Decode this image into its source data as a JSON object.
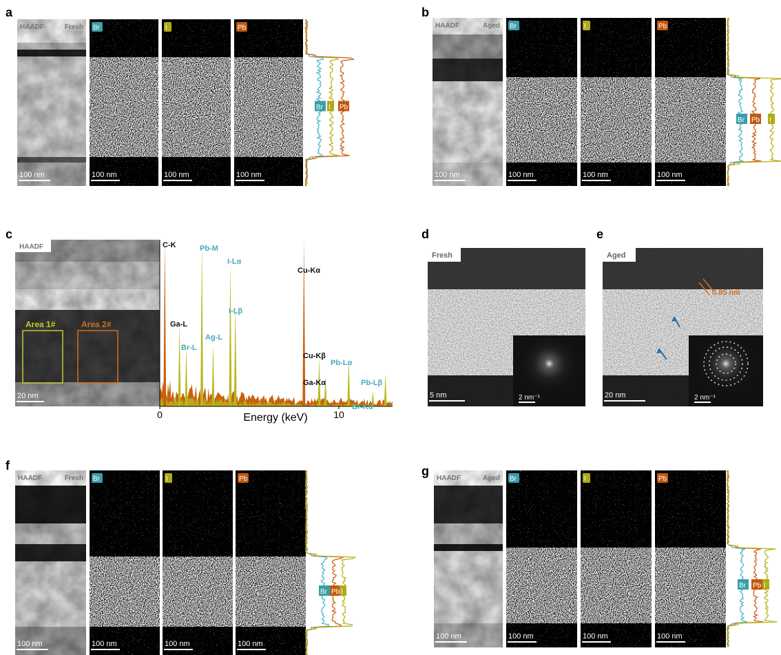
{
  "panels": {
    "a": {
      "label": "a",
      "haadf": "HAADF",
      "state": "Fresh",
      "maps": [
        "Br",
        "I",
        "Pb"
      ],
      "scale_bars": [
        "100 nm",
        "100 nm",
        "100 nm",
        "100 nm"
      ],
      "profile_labels": [
        "Br",
        "I",
        "Pb"
      ]
    },
    "b": {
      "label": "b",
      "haadf": "HAADF",
      "state": "Aged",
      "maps": [
        "Br",
        "I",
        "Pb"
      ],
      "scale_bars": [
        "100 nm",
        "100 nm",
        "100 nm",
        "100 nm"
      ],
      "profile_labels": [
        "Br",
        "Pb",
        "I"
      ]
    },
    "c": {
      "label": "c",
      "haadf": "HAADF",
      "areas": [
        "Area 1#",
        "Area 2#"
      ],
      "scale_bar": "20 nm",
      "x_axis_label": "Energy (keV)",
      "x_ticks": [
        "0",
        "10"
      ],
      "peaks": [
        "C-K",
        "Pb-M",
        "I-Lα",
        "Cu-Kα",
        "Ga-L",
        "I-Lβ",
        "Ag-L",
        "Br-L",
        "Cu-Kβ",
        "Pb-Lα",
        "Pb-Lβ",
        "Ga-Kα",
        "Br-Kα"
      ]
    },
    "d": {
      "label": "d",
      "state": "Fresh",
      "scale_bar": "5 nm",
      "inset_scale": "2 nm⁻¹"
    },
    "e": {
      "label": "e",
      "state": "Aged",
      "lattice": "0.85 nm",
      "scale_bar": "20 nm",
      "inset_scale": "2 nm⁻¹"
    },
    "f": {
      "label": "f",
      "haadf": "HAADF",
      "state": "Fresh",
      "maps": [
        "Br",
        "I",
        "Pb"
      ],
      "scale_bars": [
        "100 nm",
        "100 nm",
        "100 nm",
        "100 nm"
      ],
      "profile_labels": [
        "Br",
        "Pb",
        "I"
      ]
    },
    "g": {
      "label": "g",
      "haadf": "HAADF",
      "state": "Aged",
      "maps": [
        "Br",
        "I",
        "Pb"
      ],
      "scale_bars": [
        "100 nm",
        "100 nm",
        "100 nm",
        "100 nm"
      ],
      "profile_labels": [
        "Br",
        "Pb",
        "I"
      ]
    }
  }
}
